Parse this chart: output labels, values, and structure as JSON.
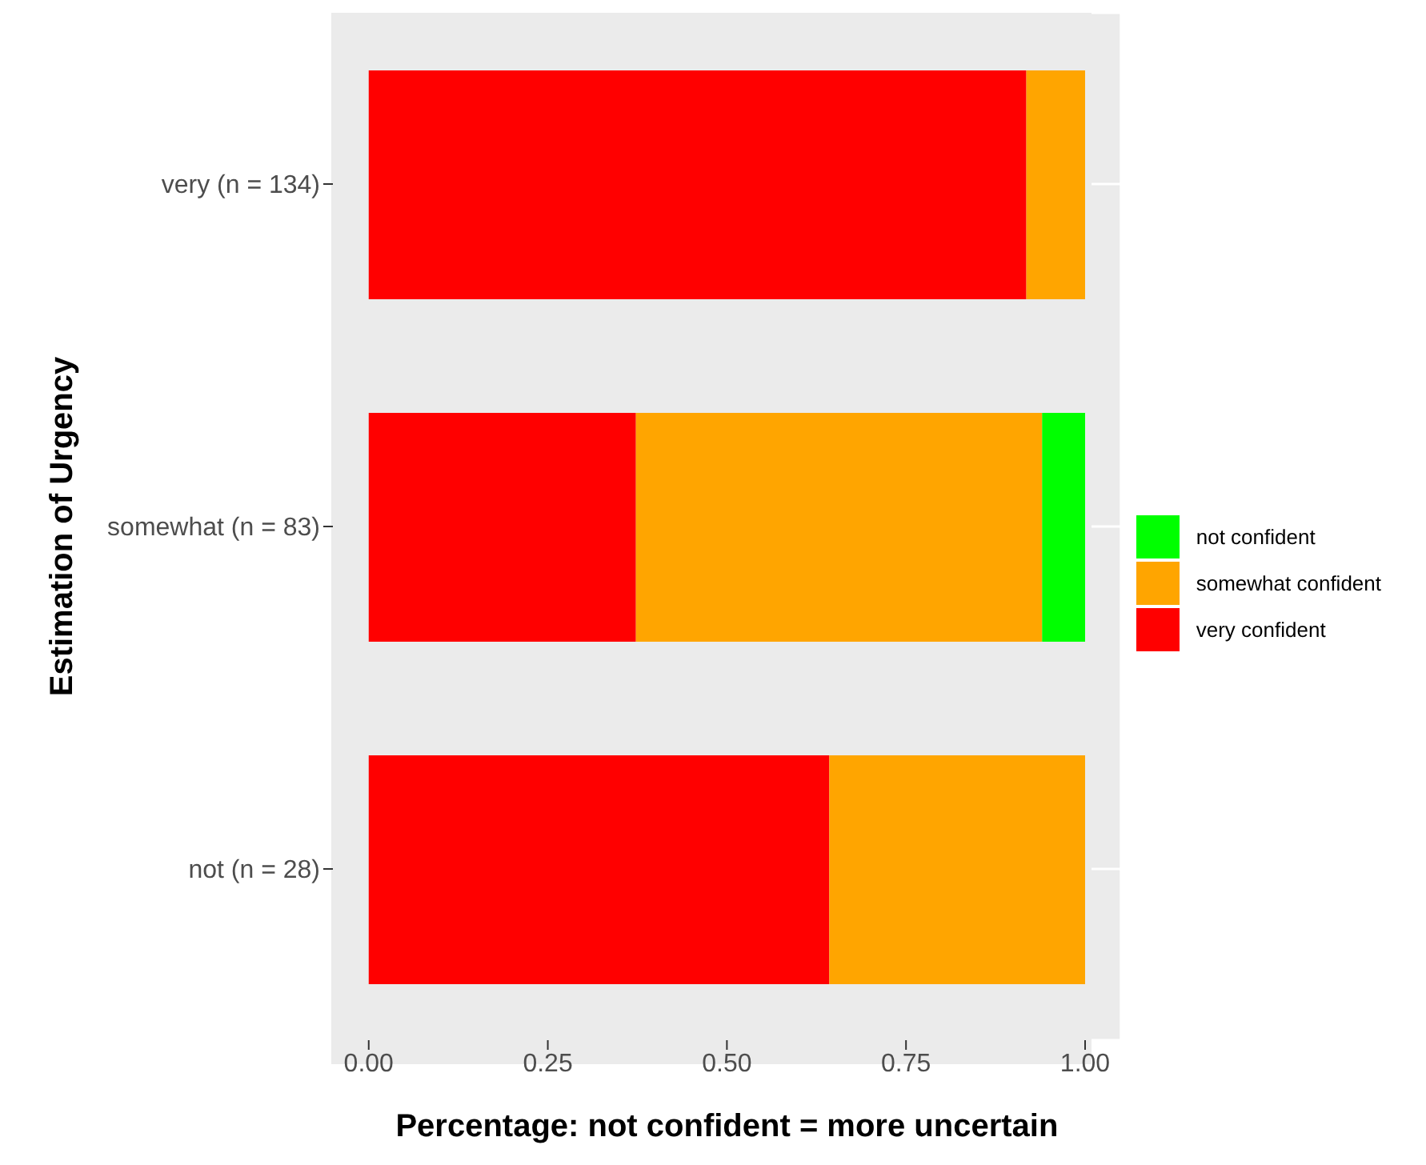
{
  "chart_data": {
    "type": "bar",
    "orientation": "horizontal",
    "stacked": true,
    "xlabel": "Percentage: not confident = more uncertain",
    "ylabel": "Estimation of Urgency",
    "categories": [
      "very (n = 134)",
      "somewhat (n = 83)",
      "not (n = 28)"
    ],
    "series": [
      {
        "name": "very confident",
        "color": "#ff0000",
        "values": [
          0.918,
          0.373,
          0.643
        ]
      },
      {
        "name": "somewhat confident",
        "color": "#ffa500",
        "values": [
          0.082,
          0.567,
          0.357
        ]
      },
      {
        "name": "not confident",
        "color": "#00ff00",
        "values": [
          0,
          0.06,
          0
        ]
      }
    ],
    "xlim": [
      -0.05,
      1.05
    ],
    "xticks": [
      {
        "value": 0,
        "label": "0.00"
      },
      {
        "value": 0.25,
        "label": "0.25"
      },
      {
        "value": 0.5,
        "label": "0.50"
      },
      {
        "value": 0.75,
        "label": "0.75"
      },
      {
        "value": 1,
        "label": "1.00"
      }
    ],
    "grid": true,
    "legend": "right"
  }
}
